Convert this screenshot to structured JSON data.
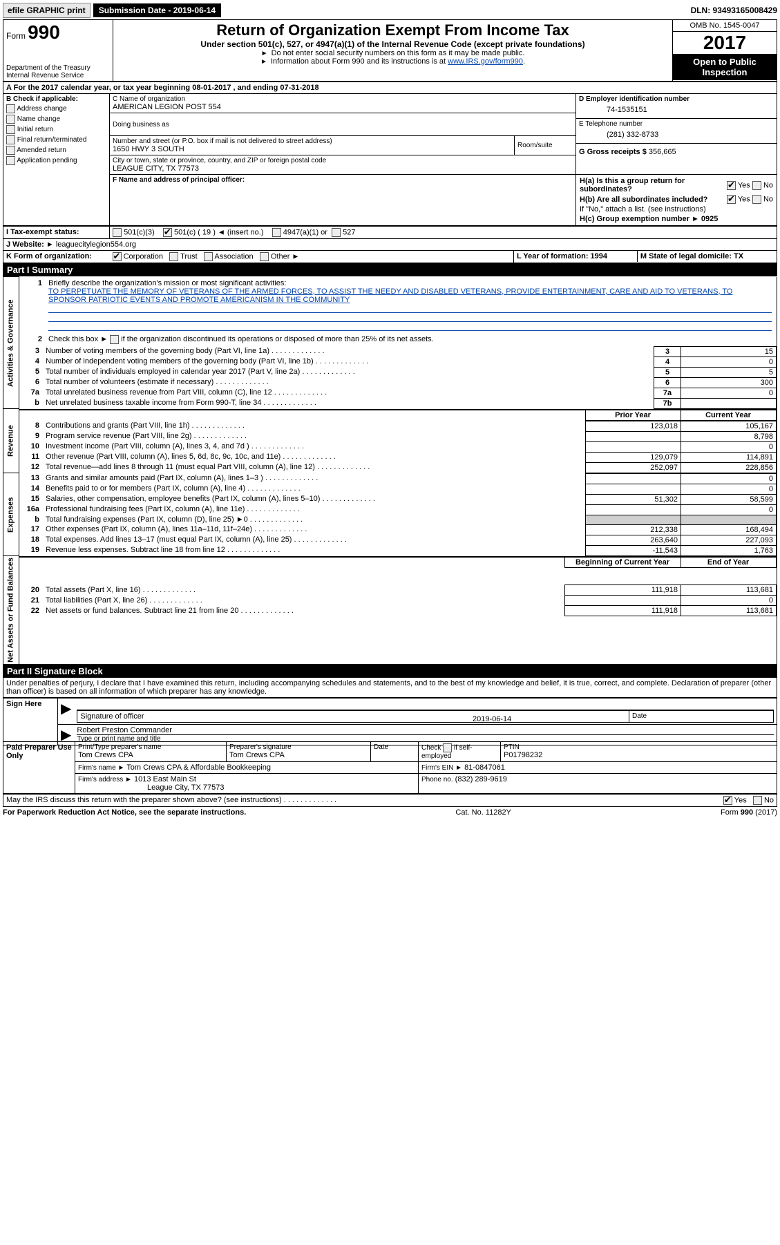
{
  "header": {
    "efile": "efile GRAPHIC print",
    "submission": "Submission Date - 2019-06-14",
    "dln": "DLN: 93493165008429"
  },
  "formbox": {
    "form": "Form",
    "num": "990",
    "dept1": "Department of the Treasury",
    "dept2": "Internal Revenue Service"
  },
  "titlebox": {
    "title": "Return of Organization Exempt From Income Tax",
    "sub": "Under section 501(c), 527, or 4947(a)(1) of the Internal Revenue Code (except private foundations)",
    "instr1": "Do not enter social security numbers on this form as it may be made public.",
    "instr2": "Information about Form 990 and its instructions is at ",
    "instr2_link": "www.IRS.gov/form990"
  },
  "rightbox": {
    "omb": "OMB No. 1545-0047",
    "year": "2017",
    "open": "Open to Public Inspection"
  },
  "sectionA": {
    "line": "For the 2017 calendar year, or tax year beginning 08-01-2017   , and ending 07-31-2018"
  },
  "checkB": {
    "hdr": "B Check if applicable:",
    "addr": "Address change",
    "name": "Name change",
    "init": "Initial return",
    "final": "Final return/terminated",
    "amend": "Amended return",
    "app": "Application pending"
  },
  "boxC": {
    "lblC": "C Name of organization",
    "org": "AMERICAN LEGION POST 554",
    "dba": "Doing business as",
    "numstreet_lbl": "Number and street (or P.O. box if mail is not delivered to street address)",
    "room_lbl": "Room/suite",
    "street": "1650 HWY 3 SOUTH",
    "city_lbl": "City or town, state or province, country, and ZIP or foreign postal code",
    "city": "LEAGUE CITY, TX  77573",
    "f_lbl": "F Name and address of principal officer:"
  },
  "boxD": {
    "lbl": "D Employer identification number",
    "val": "74-1535151",
    "e_lbl": "E Telephone number",
    "e_val": "(281) 332-8733",
    "g_lbl": "G Gross receipts $",
    "g_val": "356,665"
  },
  "boxH": {
    "ha": "H(a)  Is this a group return for subordinates?",
    "hb": "H(b)  Are all subordinates included?",
    "hb2": "If \"No,\" attach a list. (see instructions)",
    "hc": "H(c)  Group exemption number ►   0925",
    "yes": "Yes",
    "no": "No"
  },
  "rowI": {
    "lbl": "I  Tax-exempt status:",
    "c3": "501(c)(3)",
    "c": "501(c) ( 19 ) ◄ (insert no.)",
    "a1": "4947(a)(1) or",
    "527": "527"
  },
  "rowJ": {
    "lbl": "J  Website: ►",
    "val": "leaguecitylegion554.org"
  },
  "rowK": {
    "lbl": "K Form of organization:",
    "corp": "Corporation",
    "trust": "Trust",
    "assoc": "Association",
    "other": "Other ►"
  },
  "rowL": {
    "lbl": "L Year of formation: 1994"
  },
  "rowM": {
    "lbl": "M State of legal domicile: TX"
  },
  "part1": {
    "hdr": "Part I      Summary"
  },
  "summary": {
    "q1": "Briefly describe the organization's mission or most significant activities:",
    "mission": "TO PERPETUATE THE MEMORY OF VETERANS OF THE ARMED FORCES, TO ASSIST THE NEEDY AND DISABLED VETERANS, PROVIDE ENTERTAINMENT, CARE AND AID TO VETERANS, TO SPONSOR PATRIOTIC EVENTS AND PROMOTE AMERICANISM IN THE COMMUNITY",
    "q2": "Check this box ►       if the organization discontinued its operations or disposed of more than 25% of its net assets.",
    "rows": [
      {
        "n": "3",
        "t": "Number of voting members of the governing body (Part VI, line 1a)",
        "b": "3",
        "v": "15"
      },
      {
        "n": "4",
        "t": "Number of independent voting members of the governing body (Part VI, line 1b)",
        "b": "4",
        "v": "0"
      },
      {
        "n": "5",
        "t": "Total number of individuals employed in calendar year 2017 (Part V, line 2a)",
        "b": "5",
        "v": "5"
      },
      {
        "n": "6",
        "t": "Total number of volunteers (estimate if necessary)",
        "b": "6",
        "v": "300"
      },
      {
        "n": "7a",
        "t": "Total unrelated business revenue from Part VIII, column (C), line 12",
        "b": "7a",
        "v": "0"
      },
      {
        "n": "b",
        "t": "Net unrelated business taxable income from Form 990-T, line 34",
        "b": "7b",
        "v": ""
      }
    ],
    "prior_hdr": "Prior Year",
    "curr_hdr": "Current Year",
    "rev": [
      {
        "n": "8",
        "t": "Contributions and grants (Part VIII, line 1h)",
        "p": "123,018",
        "c": "105,167"
      },
      {
        "n": "9",
        "t": "Program service revenue (Part VIII, line 2g)",
        "p": "",
        "c": "8,798"
      },
      {
        "n": "10",
        "t": "Investment income (Part VIII, column (A), lines 3, 4, and 7d )",
        "p": "",
        "c": "0"
      },
      {
        "n": "11",
        "t": "Other revenue (Part VIII, column (A), lines 5, 6d, 8c, 9c, 10c, and 11e)",
        "p": "129,079",
        "c": "114,891"
      },
      {
        "n": "12",
        "t": "Total revenue—add lines 8 through 11 (must equal Part VIII, column (A), line 12)",
        "p": "252,097",
        "c": "228,856"
      }
    ],
    "exp": [
      {
        "n": "13",
        "t": "Grants and similar amounts paid (Part IX, column (A), lines 1–3 )",
        "p": "",
        "c": "0"
      },
      {
        "n": "14",
        "t": "Benefits paid to or for members (Part IX, column (A), line 4)",
        "p": "",
        "c": "0"
      },
      {
        "n": "15",
        "t": "Salaries, other compensation, employee benefits (Part IX, column (A), lines 5–10)",
        "p": "51,302",
        "c": "58,599"
      },
      {
        "n": "16a",
        "t": "Professional fundraising fees (Part IX, column (A), line 11e)",
        "p": "",
        "c": "0"
      },
      {
        "n": "b",
        "t": "Total fundraising expenses (Part IX, column (D), line 25) ►0",
        "p": "grey",
        "c": "grey"
      },
      {
        "n": "17",
        "t": "Other expenses (Part IX, column (A), lines 11a–11d, 11f–24e)",
        "p": "212,338",
        "c": "168,494"
      },
      {
        "n": "18",
        "t": "Total expenses. Add lines 13–17 (must equal Part IX, column (A), line 25)",
        "p": "263,640",
        "c": "227,093"
      },
      {
        "n": "19",
        "t": "Revenue less expenses. Subtract line 18 from line 12",
        "p": "-11,543",
        "c": "1,763"
      }
    ],
    "begin_hdr": "Beginning of Current Year",
    "end_hdr": "End of Year",
    "net": [
      {
        "n": "20",
        "t": "Total assets (Part X, line 16)",
        "p": "111,918",
        "c": "113,681"
      },
      {
        "n": "21",
        "t": "Total liabilities (Part X, line 26)",
        "p": "",
        "c": "0"
      },
      {
        "n": "22",
        "t": "Net assets or fund balances. Subtract line 21 from line 20",
        "p": "111,918",
        "c": "113,681"
      }
    ],
    "side_gov": "Activities & Governance",
    "side_rev": "Revenue",
    "side_exp": "Expenses",
    "side_net": "Net Assets or Fund Balances"
  },
  "part2": {
    "hdr": "Part II     Signature Block",
    "perjury": "Under penalties of perjury, I declare that I have examined this return, including accompanying schedules and statements, and to the best of my knowledge and belief, it is true, correct, and complete. Declaration of preparer (other than officer) is based on all information of which preparer has any knowledge."
  },
  "sign": {
    "here": "Sign Here",
    "sig_off": "Signature of officer",
    "date_lbl": "Date",
    "date": "2019-06-14",
    "name": "Robert Preston Commander",
    "name_lbl": "Type or print name and title"
  },
  "prep": {
    "lbl": "Paid Preparer Use Only",
    "name_lbl": "Print/Type preparer's name",
    "name": "Tom Crews CPA",
    "sig_lbl": "Preparer's signature",
    "sig": "Tom Crews CPA",
    "date_lbl": "Date",
    "check_lbl": "Check        if self-employed",
    "ptin_lbl": "PTIN",
    "ptin": "P01798232",
    "firm_name_lbl": "Firm's name      ►",
    "firm_name": "Tom Crews CPA & Affordable Bookkeeping",
    "firm_ein_lbl": "Firm's EIN ►",
    "firm_ein": "81-0847061",
    "firm_addr_lbl": "Firm's address ►",
    "firm_addr": "1013 East Main St",
    "firm_city": "League City, TX  77573",
    "phone_lbl": "Phone no.",
    "phone": "(832) 289-9619"
  },
  "discuss": {
    "q": "May the IRS discuss this return with the preparer shown above? (see instructions)",
    "yes": "Yes",
    "no": "No"
  },
  "footer": {
    "pra": "For Paperwork Reduction Act Notice, see the separate instructions.",
    "cat": "Cat. No. 11282Y",
    "form": "Form 990 (2017)"
  }
}
